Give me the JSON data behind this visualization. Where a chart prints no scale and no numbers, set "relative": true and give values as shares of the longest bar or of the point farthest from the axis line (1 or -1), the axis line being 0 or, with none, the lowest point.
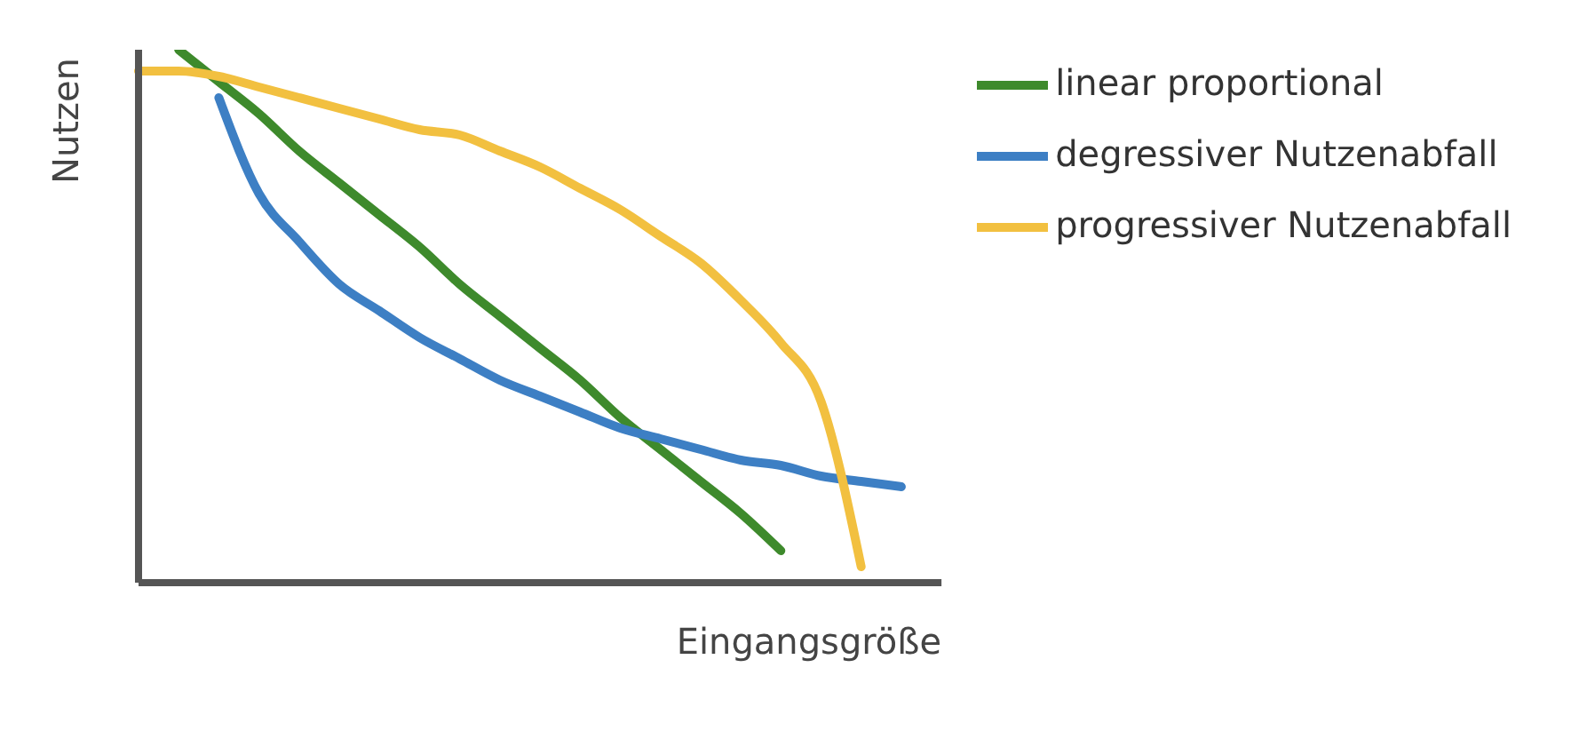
{
  "chart_data": {
    "type": "line",
    "xlabel": "Eingangsgröße",
    "ylabel": "Nutzen",
    "relative": true,
    "legend": "top right",
    "grid": false,
    "marker": "none",
    "categories": [
      null,
      null,
      null,
      null,
      null,
      null,
      null,
      null,
      null,
      null,
      null,
      null,
      null,
      null,
      null,
      null,
      null,
      null,
      null,
      null,
      null
    ],
    "series": [
      {
        "name": "linear proportional",
        "color": "#3e8a2c",
        "values": [
          null,
          1.0,
          0.94,
          0.88,
          0.81,
          0.75,
          0.69,
          0.63,
          0.56,
          0.5,
          0.44,
          0.38,
          0.31,
          0.25,
          0.19,
          0.13,
          0.06,
          null,
          null,
          null,
          null
        ]
      },
      {
        "name": "degressiver Nutzenabfall",
        "color": "#3d7fc4",
        "values": [
          null,
          null,
          0.91,
          0.73,
          0.64,
          0.56,
          0.51,
          0.46,
          0.42,
          0.38,
          0.35,
          0.32,
          0.29,
          0.27,
          0.25,
          0.23,
          0.22,
          0.2,
          0.19,
          0.18,
          null
        ]
      },
      {
        "name": "progressiver Nutzenabfall",
        "color": "#f2c040",
        "values": [
          0.96,
          0.96,
          0.95,
          0.93,
          0.91,
          0.89,
          0.87,
          0.85,
          0.84,
          0.81,
          0.78,
          0.74,
          0.7,
          0.65,
          0.6,
          0.53,
          0.45,
          0.34,
          0.03,
          null,
          null
        ]
      }
    ]
  }
}
